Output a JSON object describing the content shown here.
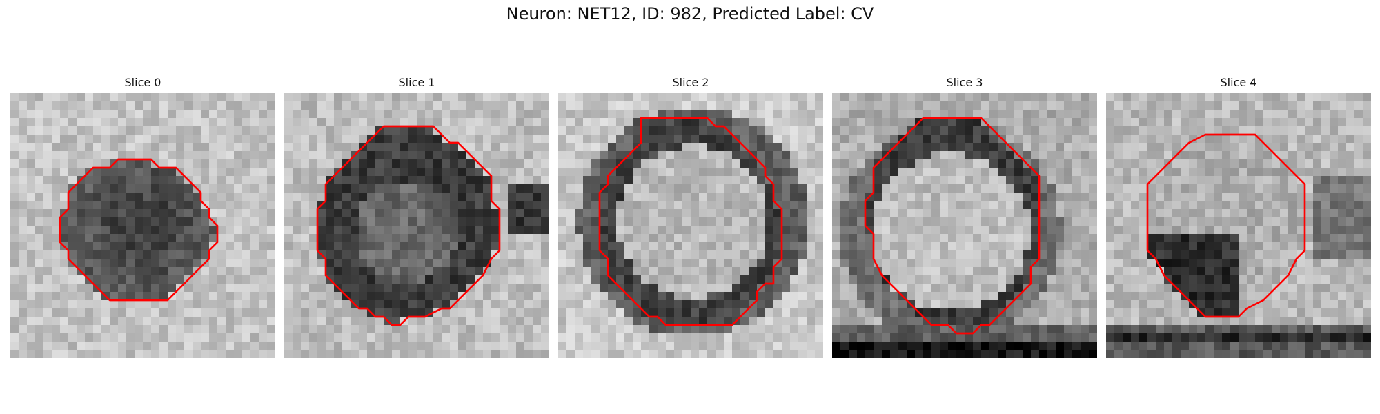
{
  "figure": {
    "title": "Neuron: NET12, ID: 982, Predicted Label: CV",
    "contour_color": "#ff0000"
  },
  "panels": [
    {
      "title": "Slice 0",
      "pattern": "dark-core",
      "contour": [
        [
          16,
          8
        ],
        [
          17,
          8
        ],
        [
          18,
          9
        ],
        [
          20,
          9
        ],
        [
          21,
          10
        ],
        [
          22,
          11
        ],
        [
          23,
          12
        ],
        [
          23,
          13
        ],
        [
          24,
          14
        ],
        [
          24,
          15
        ],
        [
          25,
          16
        ],
        [
          25,
          18
        ],
        [
          24,
          19
        ],
        [
          24,
          20
        ],
        [
          23,
          21
        ],
        [
          22,
          22
        ],
        [
          21,
          23
        ],
        [
          20,
          24
        ],
        [
          19,
          25
        ],
        [
          12,
          25
        ],
        [
          11,
          24
        ],
        [
          10,
          23
        ],
        [
          9,
          22
        ],
        [
          8,
          21
        ],
        [
          7,
          20
        ],
        [
          7,
          19
        ],
        [
          6,
          18
        ],
        [
          6,
          15
        ],
        [
          7,
          14
        ],
        [
          7,
          12
        ],
        [
          8,
          11
        ],
        [
          9,
          10
        ],
        [
          10,
          9
        ],
        [
          12,
          9
        ],
        [
          13,
          8
        ]
      ]
    },
    {
      "title": "Slice 1",
      "pattern": "dark-ring",
      "contour": [
        [
          12,
          4
        ],
        [
          18,
          4
        ],
        [
          19,
          5
        ],
        [
          20,
          6
        ],
        [
          21,
          6
        ],
        [
          22,
          7
        ],
        [
          23,
          8
        ],
        [
          24,
          9
        ],
        [
          25,
          10
        ],
        [
          25,
          13
        ],
        [
          26,
          14
        ],
        [
          26,
          19
        ],
        [
          25,
          20
        ],
        [
          24,
          22
        ],
        [
          23,
          23
        ],
        [
          22,
          24
        ],
        [
          21,
          25
        ],
        [
          20,
          26
        ],
        [
          19,
          26
        ],
        [
          17,
          27
        ],
        [
          15,
          27
        ],
        [
          14,
          28
        ],
        [
          13,
          28
        ],
        [
          12,
          27
        ],
        [
          11,
          27
        ],
        [
          10,
          26
        ],
        [
          9,
          26
        ],
        [
          8,
          25
        ],
        [
          7,
          24
        ],
        [
          6,
          23
        ],
        [
          5,
          22
        ],
        [
          5,
          20
        ],
        [
          4,
          19
        ],
        [
          4,
          14
        ],
        [
          5,
          13
        ],
        [
          5,
          11
        ],
        [
          6,
          10
        ],
        [
          7,
          9
        ],
        [
          8,
          8
        ],
        [
          9,
          7
        ],
        [
          10,
          6
        ],
        [
          11,
          5
        ]
      ]
    },
    {
      "title": "Slice 2",
      "pattern": "bright-center",
      "contour": [
        [
          10,
          3
        ],
        [
          18,
          3
        ],
        [
          19,
          4
        ],
        [
          20,
          4
        ],
        [
          21,
          5
        ],
        [
          22,
          6
        ],
        [
          23,
          7
        ],
        [
          24,
          8
        ],
        [
          25,
          9
        ],
        [
          25,
          10
        ],
        [
          26,
          11
        ],
        [
          26,
          13
        ],
        [
          27,
          14
        ],
        [
          27,
          20
        ],
        [
          26,
          21
        ],
        [
          26,
          23
        ],
        [
          25,
          23
        ],
        [
          24,
          24
        ],
        [
          24,
          25
        ],
        [
          23,
          26
        ],
        [
          22,
          27
        ],
        [
          21,
          28
        ],
        [
          13,
          28
        ],
        [
          12,
          27
        ],
        [
          11,
          27
        ],
        [
          10,
          26
        ],
        [
          9,
          25
        ],
        [
          8,
          24
        ],
        [
          7,
          23
        ],
        [
          6,
          22
        ],
        [
          6,
          20
        ],
        [
          5,
          19
        ],
        [
          5,
          12
        ],
        [
          6,
          11
        ],
        [
          6,
          10
        ],
        [
          7,
          9
        ],
        [
          8,
          8
        ],
        [
          9,
          7
        ],
        [
          10,
          6
        ],
        [
          10,
          4
        ]
      ]
    },
    {
      "title": "Slice 3",
      "pattern": "dark-rim",
      "contour": [
        [
          11,
          3
        ],
        [
          18,
          3
        ],
        [
          19,
          4
        ],
        [
          20,
          5
        ],
        [
          21,
          6
        ],
        [
          22,
          7
        ],
        [
          23,
          8
        ],
        [
          24,
          9
        ],
        [
          25,
          10
        ],
        [
          25,
          20
        ],
        [
          24,
          21
        ],
        [
          24,
          23
        ],
        [
          23,
          24
        ],
        [
          22,
          25
        ],
        [
          21,
          26
        ],
        [
          20,
          27
        ],
        [
          19,
          28
        ],
        [
          18,
          28
        ],
        [
          17,
          29
        ],
        [
          15,
          29
        ],
        [
          14,
          28
        ],
        [
          12,
          28
        ],
        [
          11,
          27
        ],
        [
          10,
          26
        ],
        [
          9,
          25
        ],
        [
          8,
          24
        ],
        [
          7,
          23
        ],
        [
          6,
          22
        ],
        [
          5,
          20
        ],
        [
          5,
          17
        ],
        [
          4,
          16
        ],
        [
          4,
          13
        ],
        [
          5,
          12
        ],
        [
          5,
          9
        ],
        [
          6,
          8
        ],
        [
          7,
          7
        ],
        [
          8,
          6
        ],
        [
          9,
          5
        ],
        [
          10,
          4
        ]
      ]
    },
    {
      "title": "Slice 4",
      "pattern": "dark-lower",
      "contour": [
        [
          12,
          5
        ],
        [
          18,
          5
        ],
        [
          19,
          6
        ],
        [
          20,
          7
        ],
        [
          21,
          8
        ],
        [
          22,
          9
        ],
        [
          23,
          10
        ],
        [
          24,
          11
        ],
        [
          24,
          19
        ],
        [
          23,
          20
        ],
        [
          22,
          22
        ],
        [
          21,
          23
        ],
        [
          20,
          24
        ],
        [
          19,
          25
        ],
        [
          17,
          26
        ],
        [
          16,
          27
        ],
        [
          12,
          27
        ],
        [
          11,
          26
        ],
        [
          10,
          25
        ],
        [
          9,
          24
        ],
        [
          8,
          23
        ],
        [
          7,
          22
        ],
        [
          6,
          20
        ],
        [
          5,
          19
        ],
        [
          5,
          11
        ],
        [
          6,
          10
        ],
        [
          7,
          9
        ],
        [
          8,
          8
        ],
        [
          9,
          7
        ],
        [
          10,
          6
        ]
      ]
    }
  ]
}
